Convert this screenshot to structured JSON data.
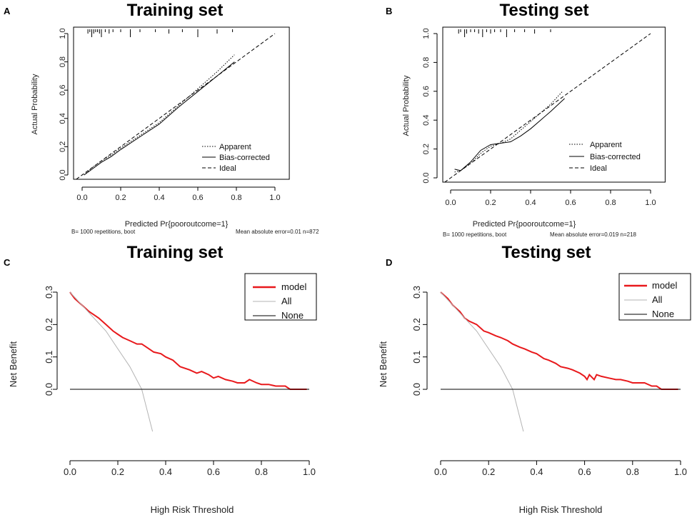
{
  "chart_data": [
    {
      "panel": "A",
      "type": "line",
      "kind": "calibration",
      "title": "Training set",
      "xlabel": "Predicted Pr{pooroutcome=1}",
      "ylabel": "Actual Probability",
      "footer_left": "B= 1000 repetitions, boot",
      "footer_right": "Mean absolute error=0.01 n=872",
      "xlim": [
        0,
        1
      ],
      "ylim": [
        0,
        1
      ],
      "ticks": [
        "0.0",
        "0.2",
        "0.4",
        "0.6",
        "0.8",
        "1.0"
      ],
      "legend": [
        {
          "name": "Apparent",
          "style": "dotted"
        },
        {
          "name": "Bias-corrected",
          "style": "solid"
        },
        {
          "name": "Ideal",
          "style": "dashed"
        }
      ],
      "series": [
        {
          "name": "Apparent",
          "style": "dotted",
          "x": [
            0.01,
            0.05,
            0.1,
            0.15,
            0.2,
            0.3,
            0.4,
            0.5,
            0.6,
            0.7,
            0.79
          ],
          "y": [
            0.0,
            0.05,
            0.1,
            0.14,
            0.19,
            0.28,
            0.37,
            0.49,
            0.61,
            0.73,
            0.85
          ]
        },
        {
          "name": "Bias-corrected",
          "style": "solid",
          "x": [
            0.01,
            0.05,
            0.1,
            0.15,
            0.2,
            0.3,
            0.4,
            0.5,
            0.6,
            0.7,
            0.79
          ],
          "y": [
            0.0,
            0.04,
            0.09,
            0.13,
            0.18,
            0.27,
            0.36,
            0.48,
            0.59,
            0.7,
            0.8
          ]
        },
        {
          "name": "Ideal",
          "style": "dashed",
          "x": [
            -0.03,
            1.0
          ],
          "y": [
            -0.03,
            1.0
          ]
        }
      ],
      "rug": [
        0.03,
        0.04,
        0.05,
        0.06,
        0.07,
        0.08,
        0.09,
        0.1,
        0.12,
        0.14,
        0.16,
        0.2,
        0.25,
        0.3,
        0.38,
        0.45,
        0.52,
        0.6,
        0.7,
        0.78
      ]
    },
    {
      "panel": "B",
      "type": "line",
      "kind": "calibration",
      "title": "Testing set",
      "xlabel": "Predicted Pr{pooroutcome=1}",
      "ylabel": "Actual Probability",
      "footer_left": "B= 1000 repetitions, boot",
      "footer_right": "Mean absolute error=0.019 n=218",
      "xlim": [
        0,
        1
      ],
      "ylim": [
        0,
        1
      ],
      "ticks": [
        "0.0",
        "0.2",
        "0.4",
        "0.6",
        "0.8",
        "1.0"
      ],
      "legend": [
        {
          "name": "Apparent",
          "style": "dotted"
        },
        {
          "name": "Bias-corrected",
          "style": "solid"
        },
        {
          "name": "Ideal",
          "style": "dashed"
        }
      ],
      "series": [
        {
          "name": "Apparent",
          "style": "dotted",
          "x": [
            0.02,
            0.05,
            0.1,
            0.15,
            0.2,
            0.25,
            0.3,
            0.35,
            0.4,
            0.45,
            0.5,
            0.56
          ],
          "y": [
            0.04,
            0.05,
            0.1,
            0.17,
            0.22,
            0.24,
            0.27,
            0.33,
            0.39,
            0.45,
            0.51,
            0.6
          ]
        },
        {
          "name": "Bias-corrected",
          "style": "solid",
          "x": [
            0.02,
            0.05,
            0.1,
            0.15,
            0.2,
            0.25,
            0.3,
            0.35,
            0.4,
            0.45,
            0.5,
            0.57
          ],
          "y": [
            0.06,
            0.05,
            0.11,
            0.19,
            0.23,
            0.24,
            0.25,
            0.29,
            0.34,
            0.4,
            0.46,
            0.55
          ]
        },
        {
          "name": "Ideal",
          "style": "dashed",
          "x": [
            -0.03,
            1.0
          ],
          "y": [
            -0.03,
            1.0
          ]
        }
      ],
      "rug": [
        0.04,
        0.05,
        0.07,
        0.08,
        0.1,
        0.12,
        0.14,
        0.16,
        0.18,
        0.2,
        0.22,
        0.25,
        0.28,
        0.32,
        0.37,
        0.42,
        0.5
      ]
    },
    {
      "panel": "C",
      "type": "line",
      "kind": "decision-curve",
      "title": "Training set",
      "xlabel": "High Risk Threshold",
      "ylabel": "Net Benefit",
      "xlim": [
        0,
        1
      ],
      "ylim": [
        -0.13,
        0.3
      ],
      "xticks": [
        "0.0",
        "0.2",
        "0.4",
        "0.6",
        "0.8",
        "1.0"
      ],
      "yticks": [
        "0.0",
        "0.1",
        "0.2",
        "0.3"
      ],
      "legend": [
        {
          "name": "model",
          "color": "#e8191c"
        },
        {
          "name": "All",
          "color": "#b3b3b3"
        },
        {
          "name": "None",
          "color": "#000000"
        }
      ],
      "series": [
        {
          "name": "model",
          "color": "#e8191c",
          "x": [
            0.0,
            0.02,
            0.05,
            0.08,
            0.1,
            0.12,
            0.15,
            0.18,
            0.2,
            0.22,
            0.25,
            0.28,
            0.3,
            0.32,
            0.35,
            0.38,
            0.4,
            0.43,
            0.46,
            0.5,
            0.53,
            0.55,
            0.58,
            0.6,
            0.62,
            0.65,
            0.68,
            0.7,
            0.73,
            0.75,
            0.78,
            0.8,
            0.83,
            0.86,
            0.9,
            0.92,
            0.95,
            0.99
          ],
          "y": [
            0.3,
            0.28,
            0.26,
            0.24,
            0.23,
            0.22,
            0.2,
            0.18,
            0.17,
            0.16,
            0.15,
            0.14,
            0.14,
            0.13,
            0.115,
            0.11,
            0.1,
            0.09,
            0.07,
            0.06,
            0.05,
            0.055,
            0.045,
            0.035,
            0.04,
            0.03,
            0.025,
            0.02,
            0.02,
            0.03,
            0.02,
            0.015,
            0.015,
            0.01,
            0.01,
            0.0,
            0.0,
            0.0
          ]
        },
        {
          "name": "All",
          "color": "#b3b3b3",
          "x": [
            0.0,
            0.05,
            0.1,
            0.15,
            0.2,
            0.25,
            0.3,
            0.345
          ],
          "y": [
            0.3,
            0.26,
            0.22,
            0.18,
            0.125,
            0.07,
            0.0,
            -0.13
          ]
        },
        {
          "name": "None",
          "color": "#000000",
          "x": [
            0.0,
            1.0
          ],
          "y": [
            0.0,
            0.0
          ]
        }
      ]
    },
    {
      "panel": "D",
      "type": "line",
      "kind": "decision-curve",
      "title": "Testing set",
      "xlabel": "High Risk Threshold",
      "ylabel": "Net Benefit",
      "xlim": [
        0,
        1
      ],
      "ylim": [
        -0.13,
        0.3
      ],
      "xticks": [
        "0.0",
        "0.2",
        "0.4",
        "0.6",
        "0.8",
        "1.0"
      ],
      "yticks": [
        "0.0",
        "0.1",
        "0.2",
        "0.3"
      ],
      "legend": [
        {
          "name": "model",
          "color": "#e8191c"
        },
        {
          "name": "All",
          "color": "#b3b3b3"
        },
        {
          "name": "None",
          "color": "#000000"
        }
      ],
      "series": [
        {
          "name": "model",
          "color": "#e8191c",
          "x": [
            0.0,
            0.03,
            0.05,
            0.08,
            0.1,
            0.12,
            0.15,
            0.18,
            0.2,
            0.23,
            0.25,
            0.28,
            0.3,
            0.33,
            0.35,
            0.38,
            0.4,
            0.43,
            0.45,
            0.48,
            0.5,
            0.53,
            0.55,
            0.58,
            0.6,
            0.61,
            0.62,
            0.64,
            0.65,
            0.67,
            0.7,
            0.73,
            0.75,
            0.78,
            0.8,
            0.85,
            0.88,
            0.9,
            0.92,
            0.95,
            0.99
          ],
          "y": [
            0.3,
            0.28,
            0.26,
            0.24,
            0.22,
            0.21,
            0.2,
            0.18,
            0.175,
            0.165,
            0.16,
            0.15,
            0.14,
            0.13,
            0.125,
            0.115,
            0.11,
            0.095,
            0.09,
            0.08,
            0.07,
            0.065,
            0.06,
            0.05,
            0.04,
            0.03,
            0.045,
            0.03,
            0.045,
            0.04,
            0.035,
            0.03,
            0.03,
            0.025,
            0.02,
            0.02,
            0.01,
            0.01,
            0.0,
            0.0,
            0.0
          ]
        },
        {
          "name": "All",
          "color": "#b3b3b3",
          "x": [
            0.0,
            0.05,
            0.1,
            0.15,
            0.2,
            0.25,
            0.3,
            0.345
          ],
          "y": [
            0.3,
            0.26,
            0.22,
            0.18,
            0.125,
            0.07,
            0.0,
            -0.13
          ]
        },
        {
          "name": "None",
          "color": "#000000",
          "x": [
            0.0,
            1.0
          ],
          "y": [
            0.0,
            0.0
          ]
        }
      ]
    }
  ]
}
